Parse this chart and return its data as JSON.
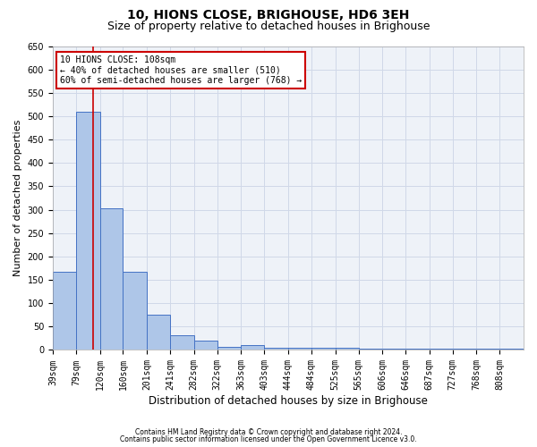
{
  "title": "10, HIONS CLOSE, BRIGHOUSE, HD6 3EH",
  "subtitle": "Size of property relative to detached houses in Brighouse",
  "xlabel": "Distribution of detached houses by size in Brighouse",
  "ylabel": "Number of detached properties",
  "footer_line1": "Contains HM Land Registry data © Crown copyright and database right 2024.",
  "footer_line2": "Contains public sector information licensed under the Open Government Licence v3.0.",
  "bar_edges": [
    39,
    79,
    120,
    160,
    201,
    241,
    282,
    322,
    363,
    403,
    444,
    484,
    525,
    565,
    606,
    646,
    687,
    727,
    768,
    808,
    849
  ],
  "bar_heights": [
    168,
    510,
    303,
    168,
    76,
    31,
    20,
    7,
    10,
    5,
    5,
    5,
    5,
    2,
    2,
    2,
    2,
    2,
    2,
    2
  ],
  "bar_color": "#aec6e8",
  "bar_edge_color": "#4472c4",
  "grid_color": "#d0d8e8",
  "background_color": "#eef2f8",
  "annotation_line1": "10 HIONS CLOSE: 108sqm",
  "annotation_line2": "← 40% of detached houses are smaller (510)",
  "annotation_line3": "60% of semi-detached houses are larger (768) →",
  "annotation_box_color": "#cc0000",
  "vline_x": 108,
  "vline_color": "#cc0000",
  "ylim": [
    0,
    650
  ],
  "yticks": [
    0,
    50,
    100,
    150,
    200,
    250,
    300,
    350,
    400,
    450,
    500,
    550,
    600,
    650
  ],
  "title_fontsize": 10,
  "subtitle_fontsize": 9,
  "xlabel_fontsize": 8.5,
  "ylabel_fontsize": 8,
  "tick_fontsize": 7,
  "annotation_fontsize": 7,
  "footer_fontsize": 5.5
}
